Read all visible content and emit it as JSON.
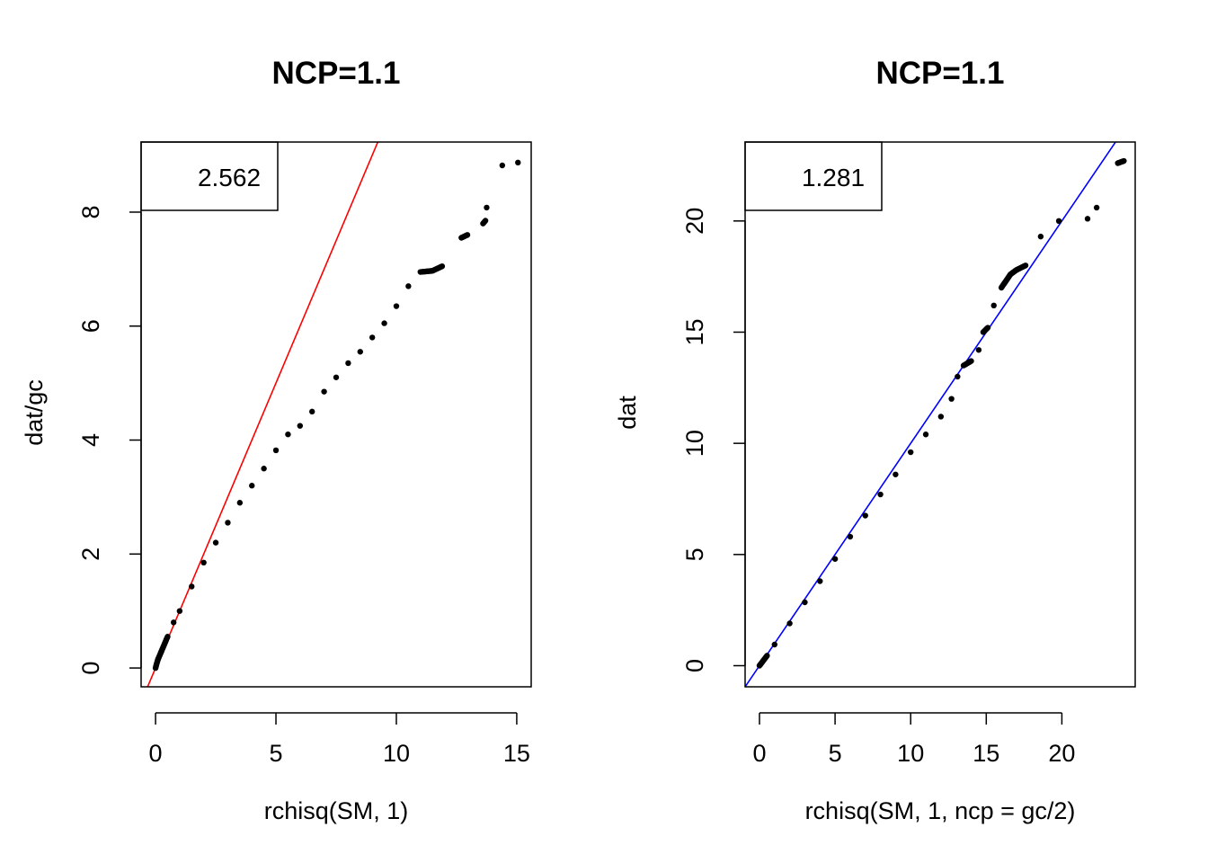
{
  "chart_data": [
    {
      "type": "scatter",
      "title": "NCP=1.1",
      "xlabel": "rchisq(SM, 1)",
      "ylabel": "dat/gc",
      "xlim": [
        -0.6,
        15.6
      ],
      "ylim": [
        -0.33,
        9.23
      ],
      "xticks": [
        0,
        5,
        10,
        15
      ],
      "yticks": [
        0,
        2,
        4,
        6,
        8
      ],
      "reference_line": {
        "intercept": 0,
        "slope": 1,
        "color": "#ff0000"
      },
      "legend": {
        "text": "2.562",
        "position": "top-left"
      },
      "point_color": "#000000",
      "points": {
        "x": [
          0,
          0.05,
          0.1,
          0.2,
          0.3,
          0.5,
          0.75,
          1,
          1.5,
          2,
          2.5,
          3,
          3.5,
          4,
          4.5,
          5,
          5.5,
          6,
          6.5,
          7,
          7.5,
          8,
          8.5,
          9,
          9.5,
          10,
          10.5,
          11,
          11.5,
          11.9,
          12.7,
          12.95,
          13.6,
          13.7,
          13.75,
          14.4,
          15.05
        ],
        "y": [
          0,
          0.08,
          0.15,
          0.25,
          0.35,
          0.55,
          0.8,
          1.0,
          1.43,
          1.85,
          2.2,
          2.55,
          2.9,
          3.2,
          3.5,
          3.82,
          4.1,
          4.25,
          4.5,
          4.85,
          5.1,
          5.35,
          5.55,
          5.8,
          6.05,
          6.35,
          6.7,
          6.95,
          6.97,
          7.05,
          7.55,
          7.6,
          7.8,
          7.85,
          8.08,
          8.82,
          8.87
        ]
      }
    },
    {
      "type": "scatter",
      "title": "NCP=1.1",
      "xlabel": "rchisq(SM, 1, ncp = gc/2)",
      "ylabel": "dat",
      "xlim": [
        -0.95,
        24.85
      ],
      "ylim": [
        -0.95,
        23.55
      ],
      "xticks": [
        0,
        5,
        10,
        15,
        20
      ],
      "yticks": [
        0,
        5,
        10,
        15,
        20
      ],
      "reference_line": {
        "intercept": 0,
        "slope": 1,
        "color": "#0000ff"
      },
      "legend": {
        "text": "1.281",
        "position": "top-left"
      },
      "point_color": "#000000",
      "points": {
        "x": [
          0,
          0.5,
          1,
          2,
          3,
          4,
          5,
          6,
          7,
          8,
          9,
          10,
          11,
          12,
          12.7,
          13.1,
          13.5,
          14,
          14.5,
          14.8,
          15.1,
          15.5,
          16,
          16.4,
          16.6,
          17,
          17.6,
          18.6,
          19.8,
          21.7,
          22.3,
          23.7,
          24.1
        ],
        "y": [
          0,
          0.45,
          0.95,
          1.9,
          2.85,
          3.8,
          4.8,
          5.8,
          6.75,
          7.7,
          8.6,
          9.6,
          10.4,
          11.2,
          12.0,
          13.0,
          13.5,
          13.7,
          14.2,
          15.0,
          15.2,
          16.2,
          17.0,
          17.4,
          17.6,
          17.8,
          18.0,
          19.3,
          20.0,
          20.1,
          20.6,
          22.6,
          22.7
        ]
      }
    }
  ]
}
